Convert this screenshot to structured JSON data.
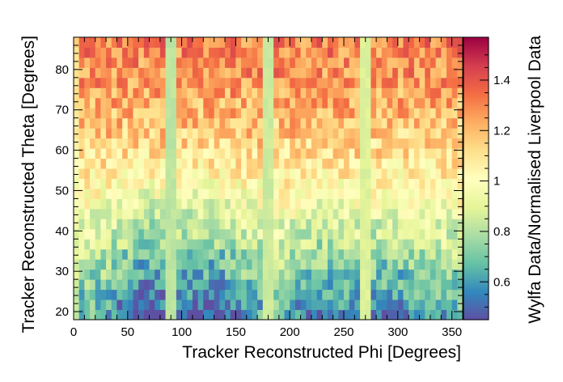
{
  "chart_data": {
    "type": "heatmap",
    "title": "",
    "xlabel": "Tracker Reconstructed Phi [Degrees]",
    "ylabel": "Tracker Reconstructed Theta [Degrees]",
    "zlabel": "Wylfa Data/Normalised Liverpool Data",
    "xlim": [
      0,
      360
    ],
    "ylim": [
      18,
      88
    ],
    "zlim": [
      0.45,
      1.57
    ],
    "x_ticks": [
      0,
      50,
      100,
      150,
      200,
      250,
      300,
      350
    ],
    "y_ticks": [
      20,
      30,
      40,
      50,
      60,
      70,
      80
    ],
    "z_ticks": [
      0.6,
      0.8,
      1,
      1.2,
      1.4
    ],
    "x_tick_labels": [
      "0",
      "50",
      "100",
      "150",
      "200",
      "250",
      "300",
      "350"
    ],
    "y_tick_labels": [
      "20",
      "30",
      "40",
      "50",
      "60",
      "70",
      "80"
    ],
    "z_tick_labels": [
      "0.6",
      "0.8",
      "1",
      "1.2",
      "1.4"
    ],
    "bin_width_x": 5,
    "theta_bin_edges": [
      18,
      20.5,
      23,
      25.5,
      28,
      30.5,
      33,
      35.5,
      38,
      40.5,
      43,
      45.5,
      48,
      50.5,
      53,
      55.5,
      58,
      60.5,
      63,
      65.5,
      68,
      70.5,
      73,
      75.5,
      78,
      80.5,
      83,
      85.5,
      88
    ],
    "phi_bin_centers": [
      2.5,
      7.5,
      12.5,
      17.5,
      22.5,
      27.5,
      32.5,
      37.5,
      42.5,
      47.5,
      52.5,
      57.5,
      62.5,
      67.5,
      72.5,
      77.5,
      82.5,
      87.5,
      92.5,
      97.5,
      102.5,
      107.5,
      112.5,
      117.5,
      122.5,
      127.5,
      132.5,
      137.5,
      142.5,
      147.5,
      152.5,
      157.5,
      162.5,
      167.5,
      172.5,
      177.5,
      182.5,
      187.5,
      192.5,
      197.5,
      202.5,
      207.5,
      212.5,
      217.5,
      222.5,
      227.5,
      232.5,
      237.5,
      242.5,
      247.5,
      252.5,
      257.5,
      262.5,
      267.5,
      272.5,
      277.5,
      282.5,
      287.5,
      292.5,
      297.5,
      302.5,
      307.5,
      312.5,
      317.5,
      322.5,
      327.5,
      332.5,
      337.5,
      342.5,
      347.5,
      352.5,
      357.5
    ],
    "theta_profile": [
      0.66,
      0.69,
      0.72,
      0.75,
      0.78,
      0.81,
      0.84,
      0.87,
      0.9,
      0.93,
      0.96,
      0.99,
      1.02,
      1.05,
      1.08,
      1.11,
      1.13,
      1.15,
      1.17,
      1.19,
      1.21,
      1.23,
      1.25,
      1.27,
      1.28,
      1.29,
      1.3,
      1.31
    ],
    "phi_dips": [
      {
        "center": 65,
        "width": 28,
        "depth": 0.22
      },
      {
        "center": 125,
        "width": 35,
        "depth": 0.2
      },
      {
        "center": 230,
        "width": 30,
        "depth": 0.12
      },
      {
        "center": 300,
        "width": 35,
        "depth": 0.12
      }
    ],
    "low_columns": [
      {
        "phi": 90,
        "value": 0.82
      },
      {
        "phi": 180,
        "value": 0.85
      },
      {
        "phi": 270,
        "value": 0.88
      }
    ],
    "edge_column": {
      "phi": 0,
      "value": 0.95
    },
    "noise_amplitude": 0.13,
    "colormap": [
      "#5e4fa2",
      "#3288bd",
      "#66c2a5",
      "#abdda4",
      "#e6f598",
      "#ffffbf",
      "#fee08b",
      "#fdae61",
      "#f46d43",
      "#d53e4f",
      "#9e0142"
    ]
  }
}
